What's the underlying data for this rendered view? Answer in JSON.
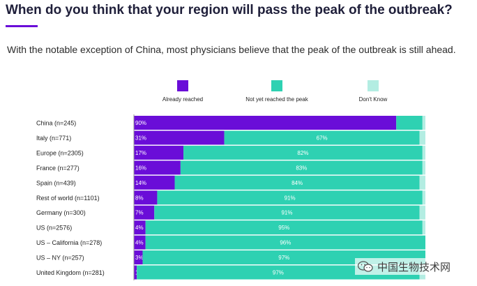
{
  "header": {
    "title": "When do you think that your region will pass the peak of the outbreak?",
    "subtitle": "With the notable exception of China, most physicians believe that the peak of the outbreak is still ahead."
  },
  "watermark": {
    "text": "中国生物技术网",
    "icon": "wechat-icon"
  },
  "colors": {
    "accent": "#6a0dd8",
    "already_reached": "#6a0dd8",
    "not_yet": "#2ed1b2",
    "dont_know": "#b3ede2"
  },
  "chart_data": {
    "type": "bar",
    "orientation": "horizontal",
    "stacked": true,
    "normalized_to": 100,
    "legend_position": "top",
    "categories": [
      "China (n=245)",
      "Italy (n=771)",
      "Europe (n=2305)",
      "France (n=277)",
      "Spain (n=439)",
      "Rest of world (n=1101)",
      "Germany (n=300)",
      "US (n=2576)",
      "US – California (n=278)",
      "US – NY (n=257)",
      "United Kingdom (n=281)"
    ],
    "series": [
      {
        "name": "Already reached",
        "color": "#6a0dd8",
        "values": [
          90,
          31,
          17,
          16,
          14,
          8,
          7,
          4,
          4,
          3,
          1
        ],
        "labels": [
          "90%",
          "31%",
          "17%",
          "16%",
          "14%",
          "8%",
          "7%",
          "4%",
          "4%",
          "3%",
          "1%"
        ]
      },
      {
        "name": "Not yet reached the peak",
        "color": "#2ed1b2",
        "values": [
          9,
          67,
          82,
          83,
          84,
          91,
          91,
          95,
          96,
          97,
          97
        ],
        "labels": [
          "",
          "67%",
          "82%",
          "83%",
          "84%",
          "91%",
          "91%",
          "95%",
          "96%",
          "97%",
          "97%"
        ]
      },
      {
        "name": "Don't Know",
        "color": "#b3ede2",
        "values": [
          1,
          2,
          1,
          1,
          2,
          1,
          2,
          1,
          0,
          0,
          2
        ],
        "labels": [
          "",
          "",
          "",
          "",
          "",
          "",
          "",
          "",
          "",
          "",
          ""
        ]
      }
    ]
  }
}
